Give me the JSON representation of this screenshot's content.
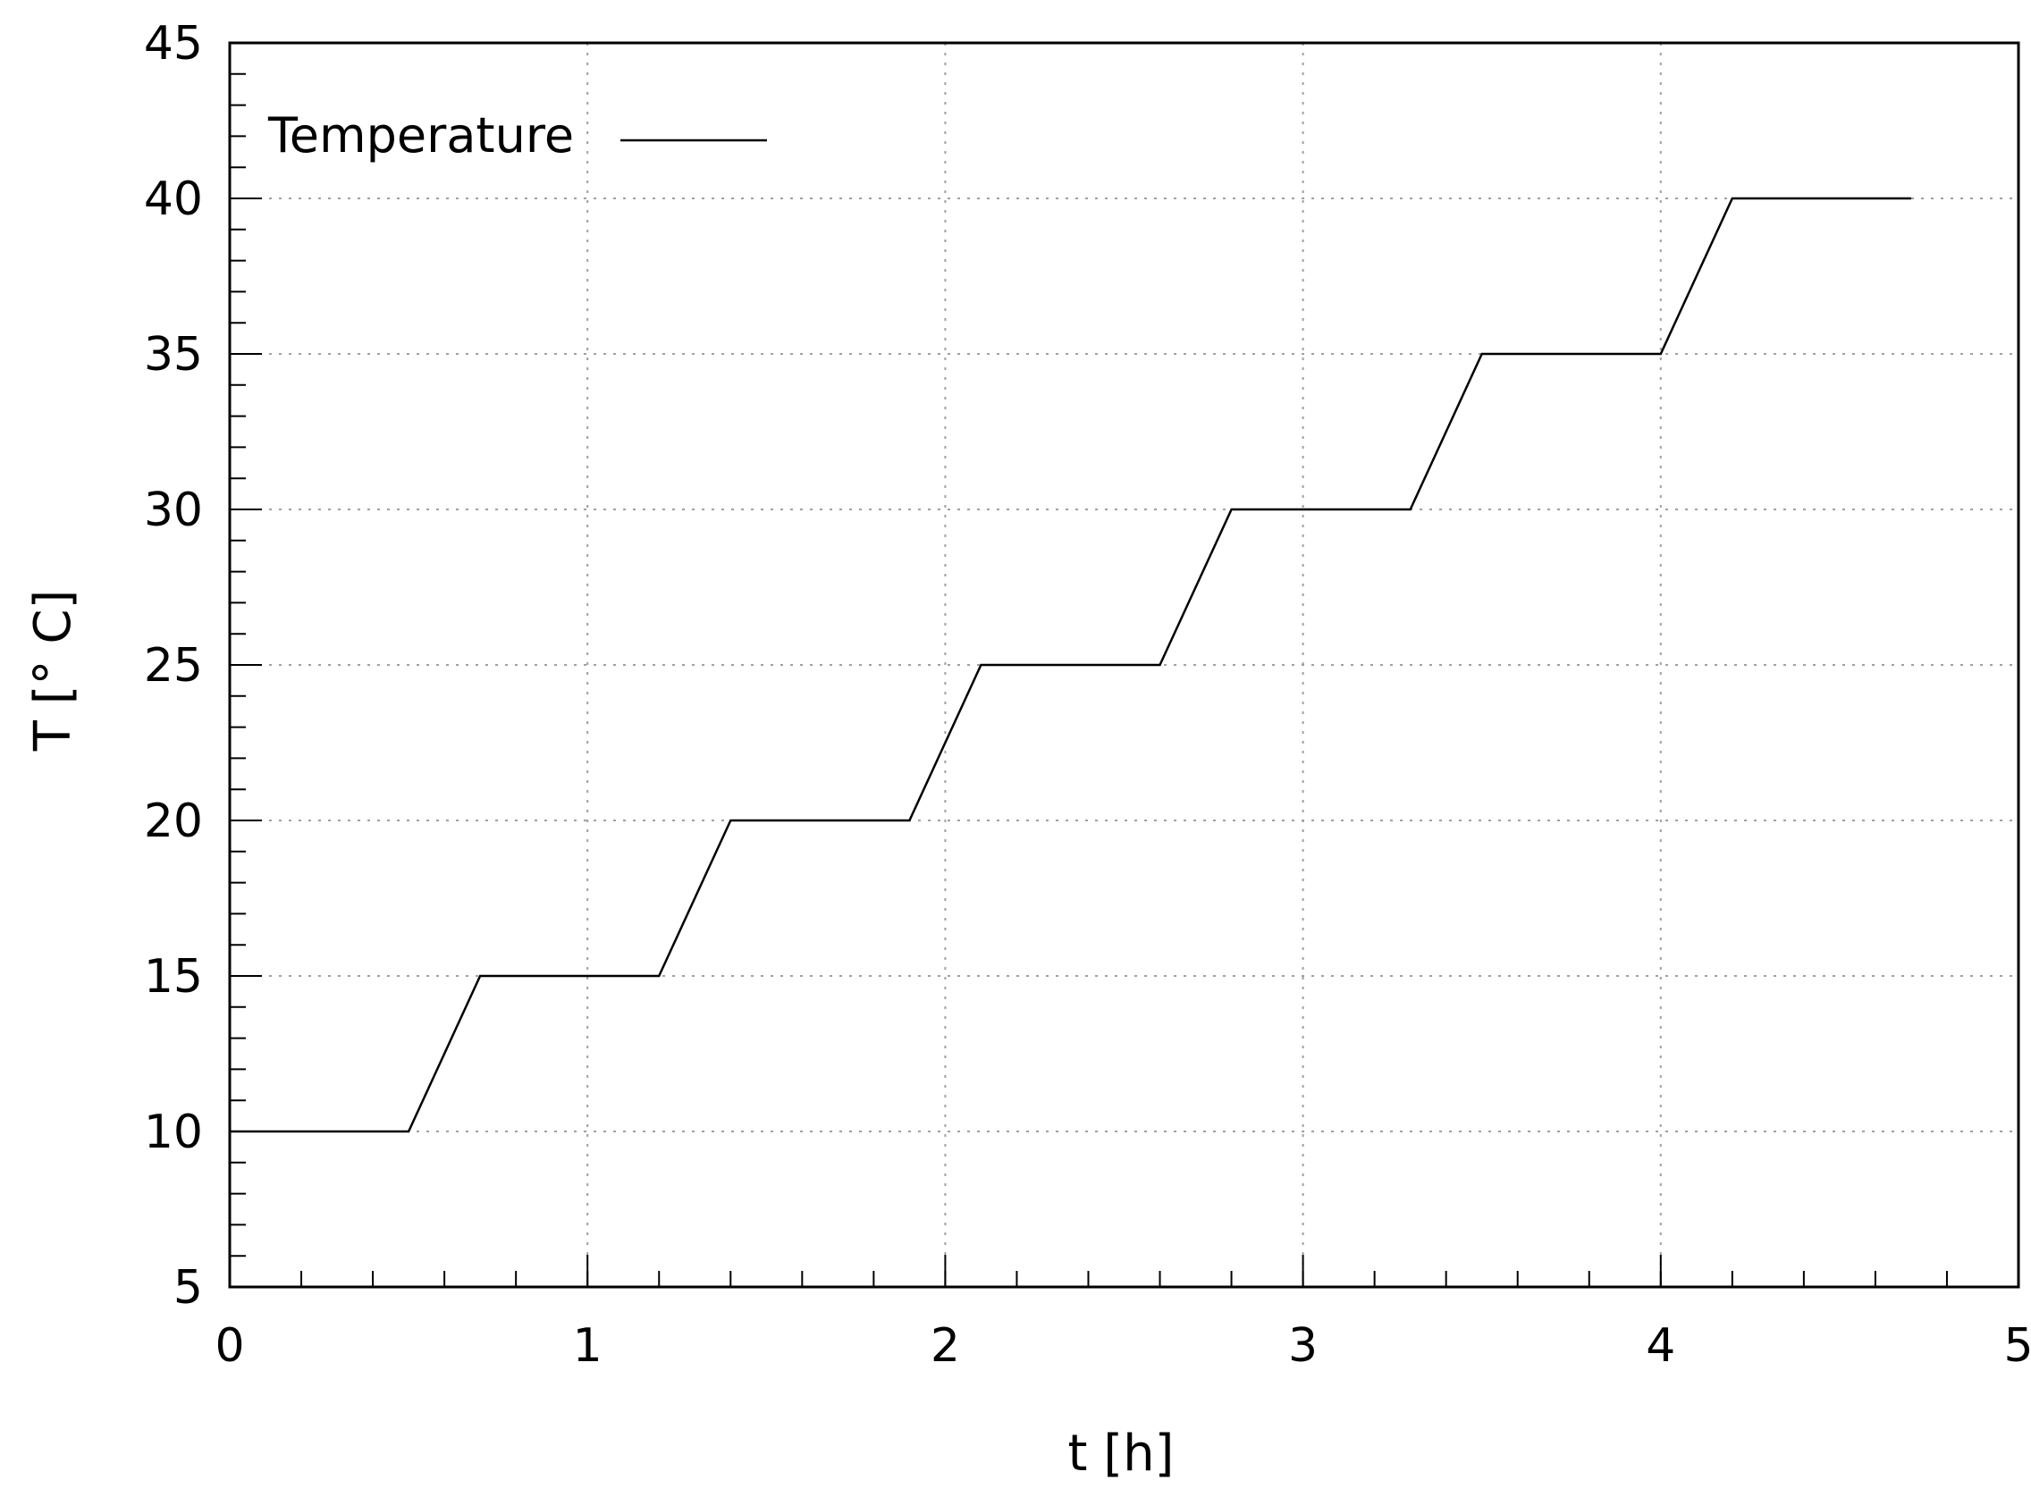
{
  "chart_data": {
    "type": "line",
    "xlabel": "t [h]",
    "ylabel": "T [° C]",
    "xlim": [
      0,
      5
    ],
    "ylim": [
      5,
      45
    ],
    "x_ticks": [
      0,
      1,
      2,
      3,
      4,
      5
    ],
    "y_ticks": [
      5,
      10,
      15,
      20,
      25,
      30,
      35,
      40,
      45
    ],
    "x_minor_step": 0.2,
    "y_minor_step": 1,
    "grid": true,
    "legend_position": "top-left",
    "series": [
      {
        "name": "Temperature",
        "color": "#000000",
        "x": [
          0,
          0.5,
          0.7,
          1.2,
          1.4,
          1.9,
          2.1,
          2.6,
          2.8,
          3.3,
          3.5,
          4.0,
          4.2,
          4.7
        ],
        "y": [
          10,
          10,
          15,
          15,
          20,
          20,
          25,
          25,
          30,
          30,
          35,
          35,
          40,
          40
        ]
      }
    ]
  }
}
